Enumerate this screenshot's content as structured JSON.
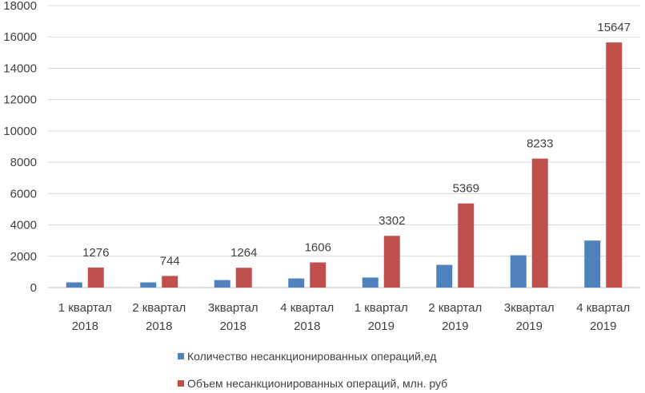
{
  "chart_data": {
    "type": "bar",
    "categories": [
      [
        "1 квартал",
        "2018"
      ],
      [
        "2 квартал",
        "2018"
      ],
      [
        "3квартал",
        "2018"
      ],
      [
        "4 квартал",
        "2018"
      ],
      [
        "1 квартал",
        "2019"
      ],
      [
        "2 квартал",
        "2019"
      ],
      [
        "3квартал",
        "2019"
      ],
      [
        "4 квартал",
        "2019"
      ]
    ],
    "series": [
      {
        "name": "Количество несанкционированных операций,ед",
        "color": "#4f81bd",
        "values": [
          330,
          330,
          480,
          580,
          640,
          1450,
          2060,
          3000
        ],
        "labels": [
          "",
          "",
          "",
          "",
          "",
          "",
          "",
          ""
        ]
      },
      {
        "name": "Объем несанкционированных операций, млн. руб",
        "color": "#c0504d",
        "values": [
          1276,
          744,
          1264,
          1606,
          3302,
          5369,
          8233,
          15647
        ],
        "labels": [
          "1276",
          "744",
          "1264",
          "1606",
          "3302",
          "5369",
          "8233",
          "15647"
        ]
      }
    ],
    "ylim": [
      0,
      18000
    ],
    "yticks": [
      "0",
      "2000",
      "4000",
      "6000",
      "8000",
      "10000",
      "12000",
      "14000",
      "16000",
      "18000"
    ],
    "grid": true,
    "legend_position": "bottom",
    "title": "",
    "xlabel": "",
    "ylabel": ""
  }
}
